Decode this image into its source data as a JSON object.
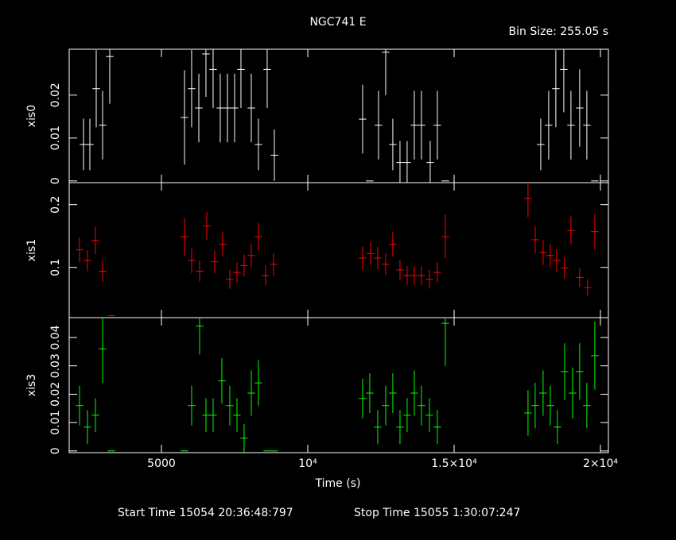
{
  "title": "NGC741 E",
  "bin_label": "Bin Size: 255.05 s",
  "xlabel": "Time (s)",
  "start_time": "Start Time 15054 20:36:48:797",
  "stop_time": "Stop Time 15055  1:30:07:247",
  "chart_data": [
    {
      "type": "errorbar",
      "ylabel": "xis0",
      "xlim": [
        1848,
        20272
      ],
      "ylim": [
        -0.0004,
        0.0307
      ],
      "xticks": [
        5000,
        {
          "value": 10000,
          "label": "10⁴"
        },
        {
          "value": 15000,
          "label": "1.5×10⁴"
        },
        {
          "value": 20000,
          "label": "2×10⁴"
        }
      ],
      "yticks": [
        0,
        0.01,
        0.02
      ],
      "series": [
        {
          "name": "xis0",
          "color": "#ffffff",
          "x": [
            2337,
            2554,
            2772,
            2989,
            3234,
            5788,
            6032,
            6277,
            6521,
            6766,
            7010,
            7255,
            7499,
            7717,
            8070,
            8314,
            8613,
            8858,
            11874,
            12118,
            12417,
            12662,
            12906,
            13151,
            13395,
            13640,
            13884,
            14183,
            14428,
            14700,
            17960,
            18231,
            18476,
            18748,
            18992,
            19291,
            19536,
            19808
          ],
          "values": [
            0.0085,
            0.0085,
            0.0215,
            0.013,
            0.029,
            0.0148,
            0.0215,
            0.017,
            0.0296,
            0.026,
            0.017,
            0.017,
            0.017,
            0.026,
            0.017,
            0.0085,
            0.026,
            0.006,
            0.0144,
            0,
            0.013,
            0.03,
            0.0085,
            0.0043,
            0.0043,
            0.013,
            0.013,
            0.0043,
            0.013,
            0,
            0.0085,
            0.013,
            0.0215,
            0.026,
            0.013,
            0.017,
            0.013,
            0
          ],
          "errors": [
            0.006,
            0.006,
            0.009,
            0.008,
            0.011,
            0.011,
            0.009,
            0.008,
            0.01,
            0.009,
            0.008,
            0.008,
            0.008,
            0.009,
            0.008,
            0.006,
            0.009,
            0.006,
            0.008,
            0,
            0.008,
            0.01,
            0.006,
            0.005,
            0.005,
            0.008,
            0.008,
            0.005,
            0.008,
            0,
            0.006,
            0.008,
            0.009,
            0.01,
            0.008,
            0.009,
            0.008,
            0
          ]
        }
      ]
    },
    {
      "type": "errorbar",
      "ylabel": "xis1",
      "xlim": [
        1848,
        20272
      ],
      "ylim": [
        0.02,
        0.235
      ],
      "xticks": [
        5000,
        {
          "value": 10000,
          "label": "10⁴"
        },
        {
          "value": 15000,
          "label": "1.5×10⁴"
        },
        {
          "value": 20000,
          "label": "2×10⁴"
        }
      ],
      "yticks": [
        0.1,
        0.2
      ],
      "series": [
        {
          "name": "xis1",
          "color": "#ff0000",
          "x": [
            2201,
            2473,
            2745,
            2989,
            3288,
            5788,
            6032,
            6304,
            6549,
            6820,
            7092,
            7336,
            7581,
            7825,
            8070,
            8314,
            8559,
            8831,
            11874,
            12146,
            12390,
            12662,
            12906,
            13151,
            13395,
            13640,
            13884,
            14156,
            14428,
            14700,
            17525,
            17770,
            18041,
            18286,
            18503,
            18775,
            18992,
            19291,
            19563,
            19808
          ],
          "values": [
            0.128,
            0.111,
            0.143,
            0.094,
            0.023,
            0.149,
            0.111,
            0.094,
            0.166,
            0.109,
            0.137,
            0.081,
            0.092,
            0.103,
            0.119,
            0.149,
            0.087,
            0.105,
            0.115,
            0.122,
            0.115,
            0.105,
            0.137,
            0.096,
            0.087,
            0.087,
            0.087,
            0.081,
            0.092,
            0.149,
            0.21,
            0.144,
            0.124,
            0.119,
            0.111,
            0.099,
            0.159,
            0.084,
            0.068,
            0.157
          ],
          "errors": [
            0.02,
            0.017,
            0.022,
            0.017,
            0,
            0.03,
            0.02,
            0.017,
            0.022,
            0.018,
            0.02,
            0.015,
            0.016,
            0.017,
            0.019,
            0.022,
            0.016,
            0.018,
            0.018,
            0.018,
            0.018,
            0.017,
            0.02,
            0.016,
            0.015,
            0.015,
            0.015,
            0.015,
            0.016,
            0.035,
            0.03,
            0.022,
            0.02,
            0.019,
            0.018,
            0.017,
            0.022,
            0.015,
            0.013,
            0.028
          ]
        }
      ]
    },
    {
      "type": "errorbar",
      "ylabel": "xis3",
      "xlim": [
        1848,
        20272
      ],
      "ylim": [
        -0.0006,
        0.047
      ],
      "xticks": [
        5000,
        {
          "value": 10000,
          "label": "10⁴"
        },
        {
          "value": 15000,
          "label": "1.5×10⁴"
        },
        {
          "value": 20000,
          "label": "2×10⁴"
        }
      ],
      "yticks": [
        0,
        0.01,
        0.02,
        0.03,
        0.04
      ],
      "series": [
        {
          "name": "xis3",
          "color": "#00ff00",
          "x": [
            2201,
            2473,
            2745,
            2989,
            3288,
            5788,
            6032,
            6304,
            6521,
            6766,
            7065,
            7336,
            7581,
            7825,
            8070,
            8314,
            8613,
            8858,
            11874,
            12118,
            12390,
            12662,
            12906,
            13151,
            13395,
            13640,
            13884,
            14156,
            14428,
            14700,
            17525,
            17770,
            18041,
            18286,
            18530,
            18775,
            19047,
            19291,
            19536,
            19808
          ],
          "values": [
            0.016,
            0.0084,
            0.0126,
            0.036,
            0,
            0,
            0.016,
            0.044,
            0.0126,
            0.0126,
            0.0247,
            0.016,
            0.0126,
            0.0045,
            0.0204,
            0.024,
            0,
            0,
            0.0185,
            0.0204,
            0.0084,
            0.016,
            0.0204,
            0.0084,
            0.0126,
            0.0204,
            0.016,
            0.0126,
            0.0084,
            0.045,
            0.0134,
            0.016,
            0.0204,
            0.016,
            0.0084,
            0.028,
            0.0204,
            0.028,
            0.016,
            0.0336
          ],
          "errors": [
            0.007,
            0.006,
            0.006,
            0.012,
            0,
            0,
            0.007,
            0.01,
            0.006,
            0.006,
            0.008,
            0.007,
            0.006,
            0.005,
            0.008,
            0.008,
            0,
            0,
            0.007,
            0.007,
            0.006,
            0.007,
            0.007,
            0.006,
            0.006,
            0.008,
            0.007,
            0.006,
            0.006,
            0.015,
            0.008,
            0.008,
            0.008,
            0.007,
            0.006,
            0.01,
            0.009,
            0.01,
            0.008,
            0.012
          ]
        }
      ]
    }
  ]
}
